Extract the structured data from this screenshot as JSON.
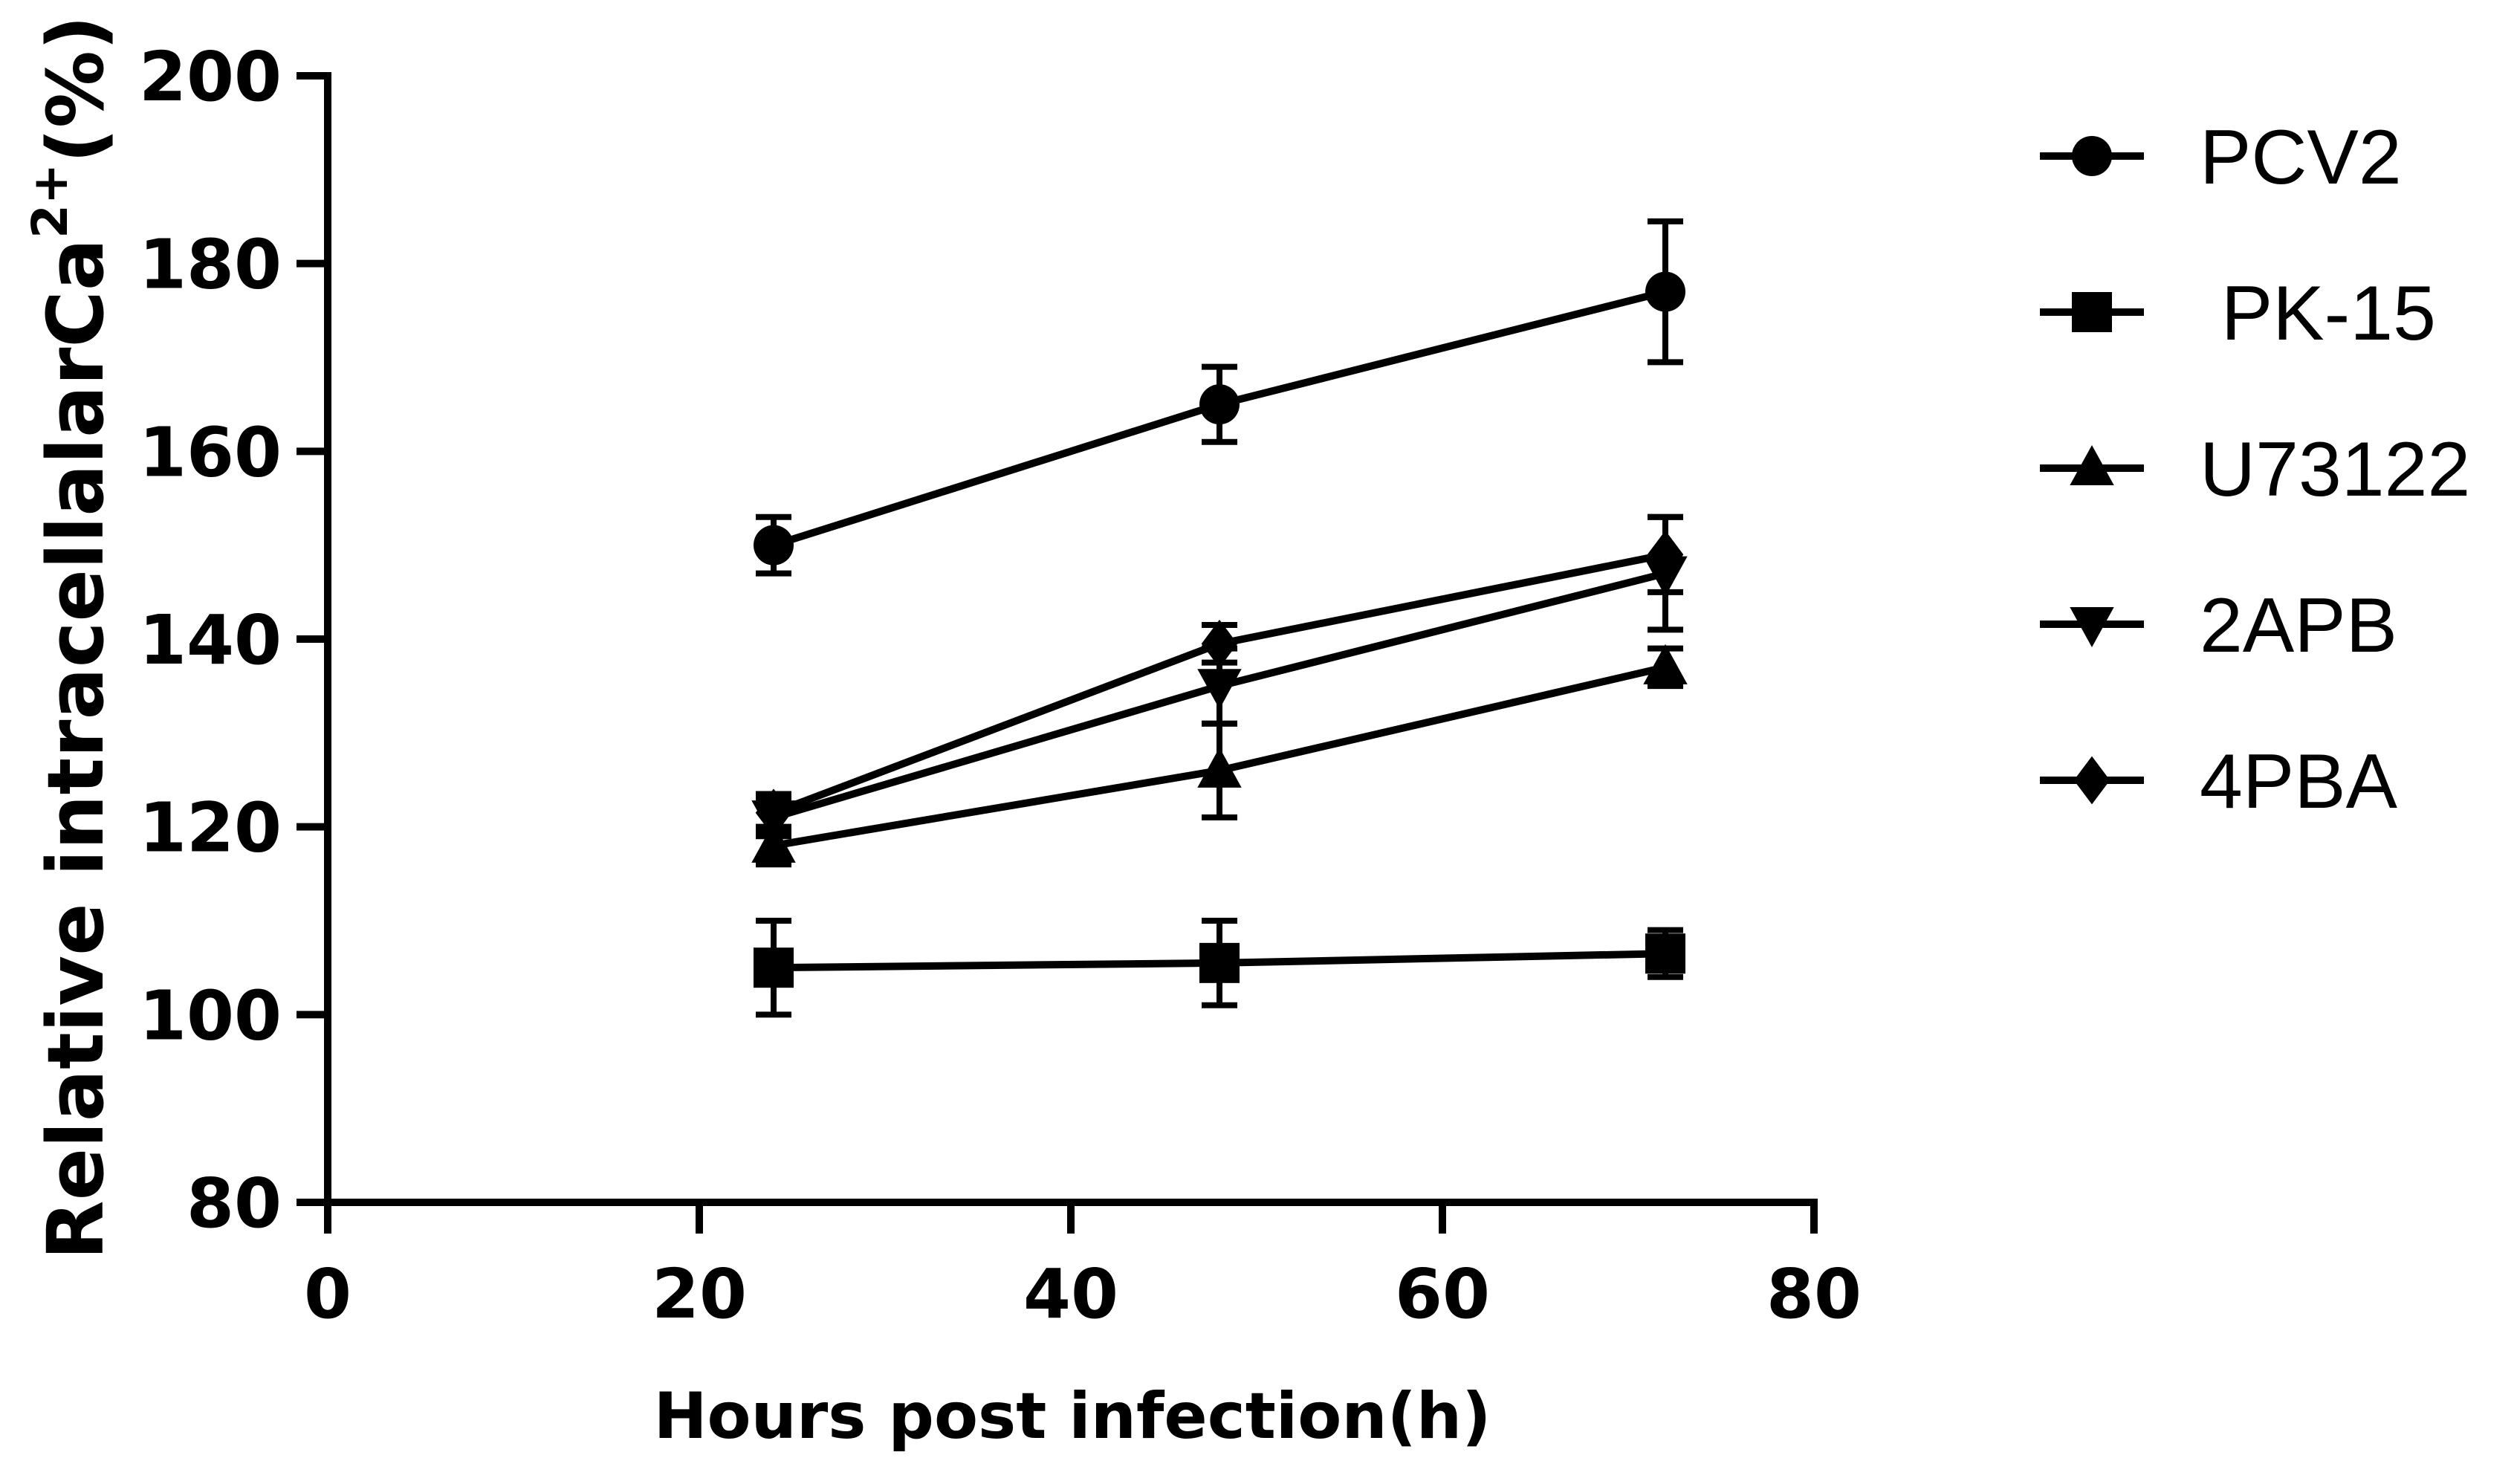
{
  "chart_data": {
    "type": "line",
    "xlabel": "Hours post infection(h)",
    "ylabel": {
      "main": "Relative intracellalarCa",
      "superscript": "2+",
      "suffix": "(%)"
    },
    "xlim": [
      0,
      80
    ],
    "ylim": [
      80,
      200
    ],
    "xticks": [
      0,
      20,
      40,
      60,
      80
    ],
    "yticks": [
      80,
      100,
      120,
      140,
      160,
      180,
      200
    ],
    "grid": false,
    "legend_position": "right",
    "x": [
      24,
      48,
      72
    ],
    "series": [
      {
        "name": "PCV2",
        "marker": "circle",
        "values": [
          150,
          165,
          177
        ],
        "errors": [
          3,
          4,
          7.5
        ]
      },
      {
        "name": " PK-15",
        "marker": "square",
        "values": [
          105,
          105.5,
          106.5
        ],
        "errors": [
          5,
          4.5,
          2.5
        ]
      },
      {
        "name": "U73122",
        "marker": "triangle-up",
        "values": [
          118,
          126,
          137
        ],
        "errors": [
          2,
          5,
          2
        ]
      },
      {
        "name": "2APB",
        "marker": "triangle-down",
        "values": [
          121,
          135,
          147
        ],
        "errors": [
          2,
          4,
          6
        ]
      },
      {
        "name": "4PBA",
        "marker": "diamond",
        "values": [
          121.5,
          139.5,
          149
        ],
        "errors": [
          2,
          2,
          4
        ]
      }
    ]
  }
}
